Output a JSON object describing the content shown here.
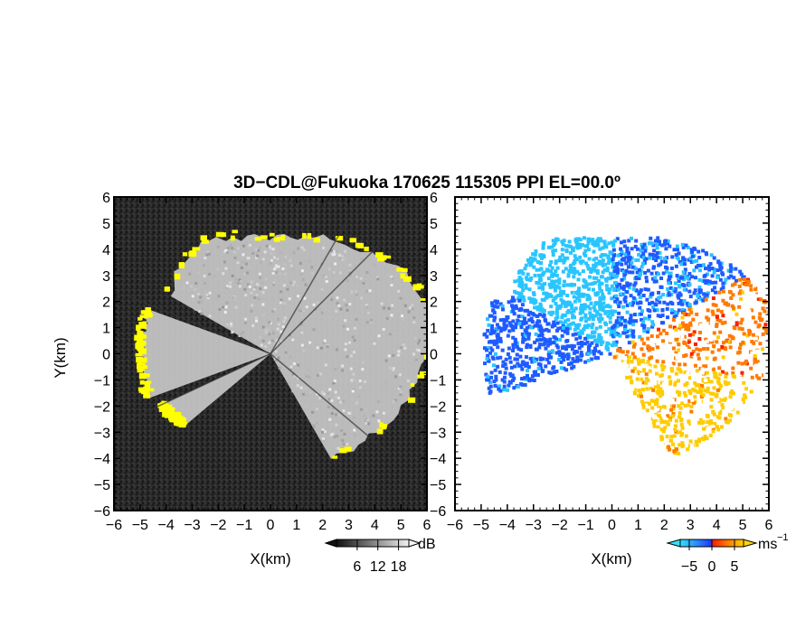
{
  "title": "3D−CDL@Fukuoka 170625 115305 PPI EL=00.0º",
  "colors": {
    "background_left": "#262626",
    "gray_echo": "#c8c8c8",
    "yellow_edge": "#ffff00",
    "cyan": "#29c5ff",
    "blue": "#1f5bff",
    "red": "#ff1e00",
    "orange": "#ff7a00",
    "gold": "#ffcc00",
    "white": "#ffffff"
  },
  "chart_data": [
    {
      "type": "heatmap",
      "name": "reflectivity",
      "xlabel": "X(km)",
      "ylabel": "Y(km)",
      "xlim": [
        -6,
        6
      ],
      "ylim": [
        -6,
        6
      ],
      "x_ticks": [
        "−6",
        "−5",
        "−4",
        "−3",
        "−2",
        "−1",
        "0",
        "1",
        "2",
        "3",
        "4",
        "5",
        "6"
      ],
      "y_ticks": [
        "6",
        "5",
        "4",
        "3",
        "2",
        "1",
        "0",
        "−1",
        "−2",
        "−3",
        "−4",
        "−5",
        "−6"
      ],
      "colorbar": {
        "unit": "dB",
        "ticks": [
          "6",
          "12",
          "18"
        ],
        "range": [
          0,
          21
        ]
      },
      "echo_sectors": [
        {
          "from_deg": -60,
          "to_deg": 150,
          "edge_km": [
            4.6,
            4.8,
            5.2,
            5.6,
            6.0,
            6.3,
            6.0,
            5.4,
            5.0,
            4.6,
            4.4,
            4.6,
            5.0,
            4.8,
            4.5
          ]
        },
        {
          "from_deg": 160,
          "to_deg": 200,
          "edge_km": [
            5.0,
            5.0,
            4.9,
            4.9,
            5.0
          ]
        },
        {
          "from_deg": 205,
          "to_deg": 220,
          "edge_km": [
            4.6,
            4.4,
            4.2
          ]
        }
      ]
    },
    {
      "type": "heatmap",
      "name": "radial velocity",
      "xlabel": "X(km)",
      "xlim": [
        -6,
        6
      ],
      "ylim": [
        -6,
        6
      ],
      "x_ticks": [
        "−6",
        "−5",
        "−4",
        "−3",
        "−2",
        "−1",
        "0",
        "1",
        "2",
        "3",
        "4",
        "5",
        "6"
      ],
      "y_ticks": [
        "6",
        "5",
        "4",
        "3",
        "2",
        "1",
        "0",
        "−1",
        "−2",
        "−3",
        "−4",
        "−5",
        "−6"
      ],
      "colorbar": {
        "unit": "ms",
        "unit_exponent": "−1",
        "ticks": [
          "−5",
          "0",
          "5"
        ],
        "range": [
          -7,
          7
        ]
      },
      "velocity_regions": [
        {
          "from_deg": 90,
          "to_deg": 150,
          "velocity_ms": -3.0
        },
        {
          "from_deg": 30,
          "to_deg": 90,
          "velocity_ms": -5.5
        },
        {
          "from_deg": 150,
          "to_deg": 200,
          "velocity_ms": -6.0
        },
        {
          "from_deg": -10,
          "to_deg": 30,
          "velocity_ms": 3.0
        },
        {
          "from_deg": -60,
          "to_deg": -10,
          "velocity_ms": 5.0
        }
      ]
    }
  ]
}
